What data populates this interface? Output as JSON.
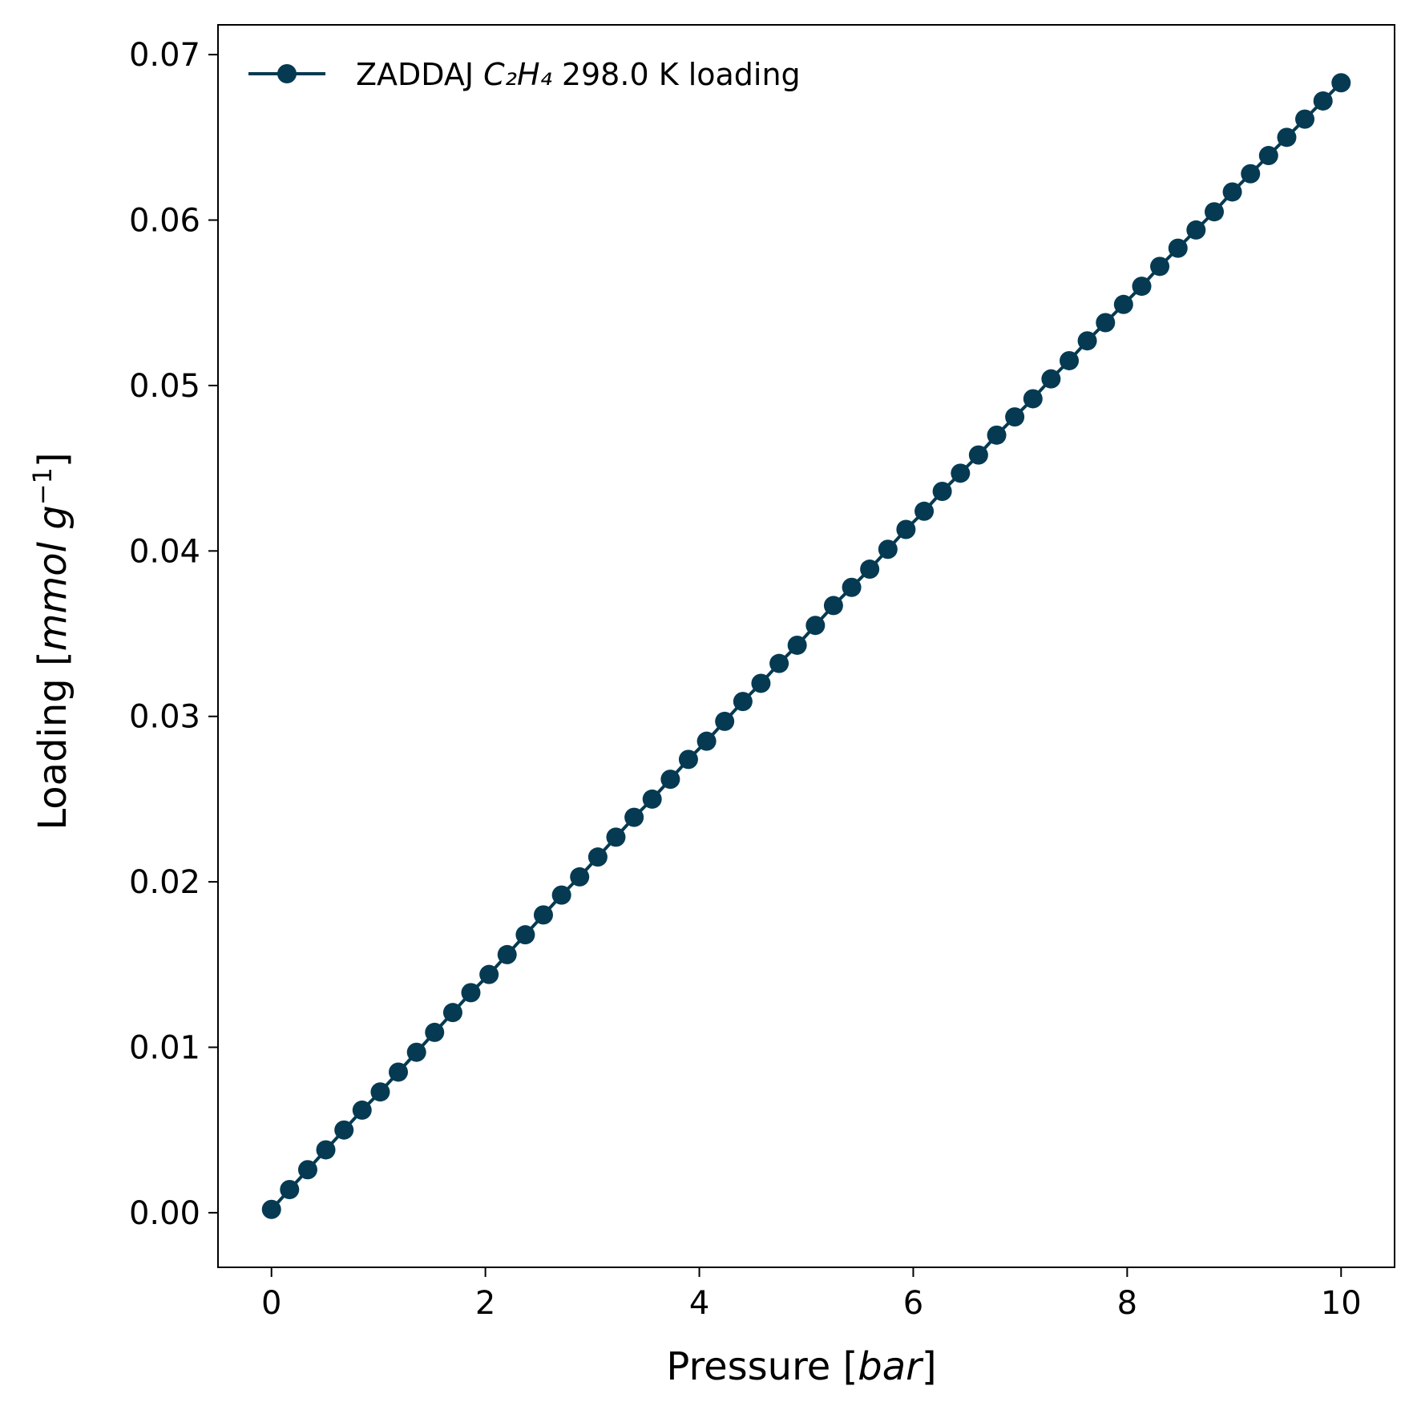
{
  "chart_data": {
    "type": "line",
    "xlabel_text": "Pressure [",
    "xlabel_unit": "bar",
    "xlabel_close": "]",
    "ylabel_text": "Loading [",
    "ylabel_unit": "mmol g",
    "ylabel_exp": "−1",
    "ylabel_close": "]",
    "xlim": [
      -0.5,
      10.5
    ],
    "ylim": [
      -0.0033,
      0.0718
    ],
    "xticks": [
      0,
      2,
      4,
      6,
      8,
      10
    ],
    "xtick_labels": [
      "0",
      "2",
      "4",
      "6",
      "8",
      "10"
    ],
    "yticks": [
      0.0,
      0.01,
      0.02,
      0.03,
      0.04,
      0.05,
      0.06,
      0.07
    ],
    "ytick_labels": [
      "0.00",
      "0.01",
      "0.02",
      "0.03",
      "0.04",
      "0.05",
      "0.06",
      "0.07"
    ],
    "grid": false,
    "legend_position": "upper-left",
    "series": [
      {
        "legend_prefix": "ZADDAJ ",
        "legend_formula": "C₂H₄",
        "legend_suffix": " 298.0 K loading",
        "color": "#053a52",
        "marker": "circle",
        "x": [
          0.0,
          0.169,
          0.339,
          0.508,
          0.678,
          0.847,
          1.017,
          1.186,
          1.356,
          1.525,
          1.695,
          1.864,
          2.034,
          2.203,
          2.373,
          2.542,
          2.712,
          2.881,
          3.051,
          3.22,
          3.39,
          3.559,
          3.729,
          3.898,
          4.068,
          4.237,
          4.407,
          4.576,
          4.746,
          4.915,
          5.085,
          5.254,
          5.424,
          5.593,
          5.763,
          5.932,
          6.102,
          6.271,
          6.441,
          6.61,
          6.78,
          6.949,
          7.119,
          7.288,
          7.458,
          7.627,
          7.797,
          7.966,
          8.136,
          8.305,
          8.475,
          8.644,
          8.814,
          8.983,
          9.153,
          9.322,
          9.492,
          9.661,
          9.831,
          10.0
        ],
        "y": [
          0.0002,
          0.0014,
          0.0026,
          0.0038,
          0.005,
          0.0062,
          0.0073,
          0.0085,
          0.0097,
          0.0109,
          0.0121,
          0.0133,
          0.0144,
          0.0156,
          0.0168,
          0.018,
          0.0192,
          0.0203,
          0.0215,
          0.0227,
          0.0239,
          0.025,
          0.0262,
          0.0274,
          0.0285,
          0.0297,
          0.0309,
          0.032,
          0.0332,
          0.0343,
          0.0355,
          0.0367,
          0.0378,
          0.0389,
          0.0401,
          0.0413,
          0.0424,
          0.0436,
          0.0447,
          0.0458,
          0.047,
          0.0481,
          0.0492,
          0.0504,
          0.0515,
          0.0527,
          0.0538,
          0.0549,
          0.056,
          0.0572,
          0.0583,
          0.0594,
          0.0605,
          0.0617,
          0.0628,
          0.0639,
          0.065,
          0.0661,
          0.0672,
          0.0683
        ]
      }
    ]
  }
}
